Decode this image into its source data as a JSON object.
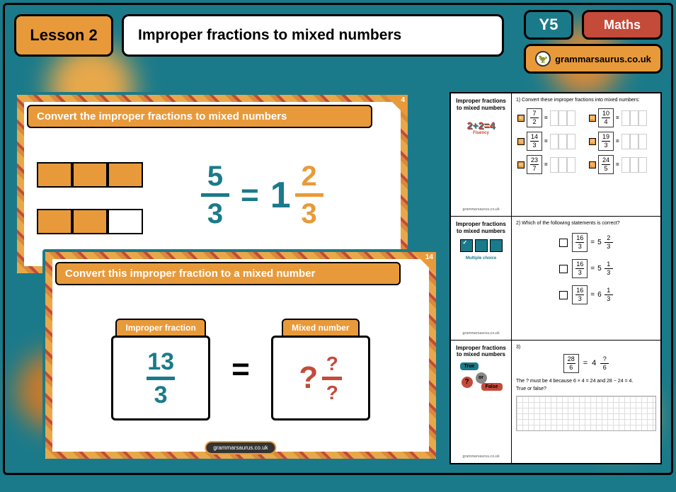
{
  "header": {
    "lesson_label": "Lesson 2",
    "title": "Improper fractions to mixed numbers",
    "year": "Y5",
    "subject": "Maths",
    "brand": "grammarsaurus.co.uk"
  },
  "colors": {
    "teal": "#1a7a8a",
    "orange": "#e89a3a",
    "red": "#c44a3a",
    "black": "#000000",
    "white": "#ffffff"
  },
  "slide1": {
    "page_num": "4",
    "banner": "Convert the improper fractions to mixed numbers",
    "bars": {
      "row1": [
        true,
        true,
        true
      ],
      "row2": [
        true,
        true,
        false
      ]
    },
    "equation": {
      "num": "5",
      "den": "3",
      "whole": "1",
      "mix_num": "2",
      "mix_den": "3"
    }
  },
  "slide2": {
    "page_num": "14",
    "banner": "Convert this improper fraction to a mixed number",
    "left_label": "Improper fraction",
    "right_label": "Mixed number",
    "frac": {
      "num": "13",
      "den": "3"
    },
    "answer": {
      "whole": "?",
      "num": "?",
      "den": "?"
    },
    "eq": "=",
    "footer": "grammarsaurus.co.uk"
  },
  "worksheet": {
    "side_title": "Improper fractions to mixed numbers",
    "brand": "grammarsaurus.co.uk",
    "row1": {
      "icon_text": "2+2=4",
      "icon_sub": "Fluency",
      "q": "1) Convert these improper fractions into mixed numbers:",
      "items": [
        {
          "lbl": "a)",
          "n": "7",
          "d": "2"
        },
        {
          "lbl": "b)",
          "n": "10",
          "d": "4"
        },
        {
          "lbl": "c)",
          "n": "14",
          "d": "3"
        },
        {
          "lbl": "d)",
          "n": "19",
          "d": "3"
        },
        {
          "lbl": "e)",
          "n": "23",
          "d": "7"
        },
        {
          "lbl": "f)",
          "n": "24",
          "d": "5"
        }
      ]
    },
    "row2": {
      "icon_sub": "Multiple choice",
      "q": "2) Which of the following statements is correct?",
      "statements": [
        {
          "n": "16",
          "d": "3",
          "w": "5",
          "mn": "2",
          "md": "3"
        },
        {
          "n": "16",
          "d": "3",
          "w": "5",
          "mn": "1",
          "md": "3"
        },
        {
          "n": "16",
          "d": "3",
          "w": "6",
          "mn": "1",
          "md": "3"
        }
      ]
    },
    "row3": {
      "true_lbl": "True",
      "false_lbl": "False",
      "or_lbl": "or",
      "q_num": "3)",
      "eq": {
        "n": "28",
        "d": "6",
        "w": "4",
        "mn": "?",
        "md": "6"
      },
      "explain": "The ? must be 4 because 6 × 4 = 24 and 28 − 24 = 4.",
      "prompt": "True or false?"
    }
  }
}
